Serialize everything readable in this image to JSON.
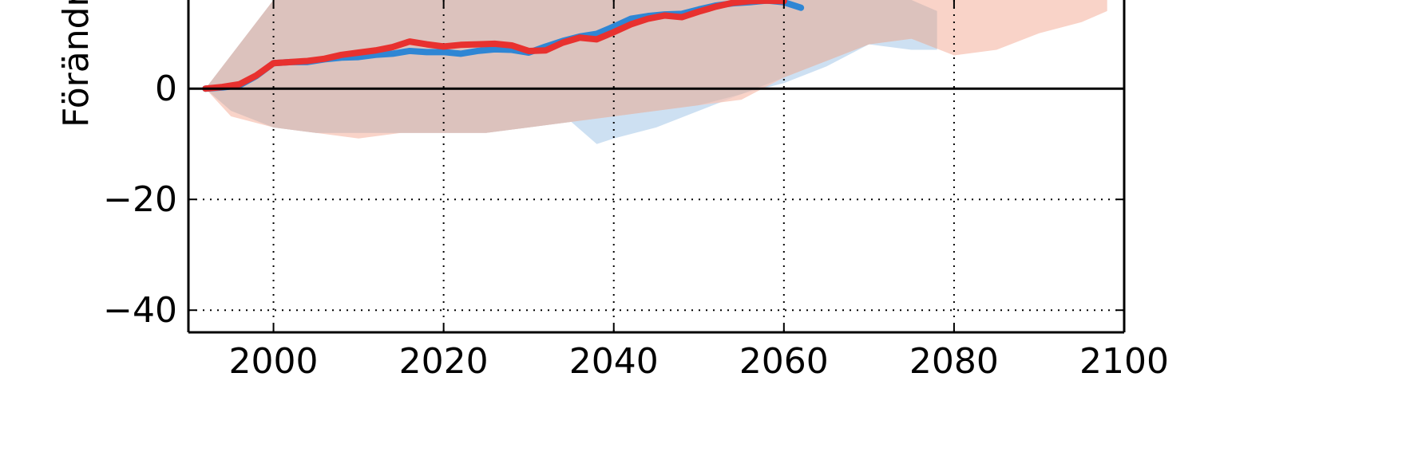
{
  "chart_data": {
    "type": "line",
    "ylabel": "Förändring",
    "xlim": [
      1990,
      2100
    ],
    "ylim": [
      -44,
      16
    ],
    "xticks": [
      2000,
      2020,
      2040,
      2060,
      2080,
      2100
    ],
    "yticks": [
      -40,
      -20,
      0
    ],
    "xtick_labels": [
      "2000",
      "2020",
      "2040",
      "2060",
      "2080",
      "2100"
    ],
    "ytick_labels": [
      "−40",
      "−20",
      "0"
    ],
    "grid": true,
    "zero_line": true,
    "colors": {
      "red": "#e8312f",
      "blue": "#2f86d4",
      "red_band": "#f7c4b5",
      "blue_band": "#bcd6ee",
      "overlap_band": "#dcc2bd"
    },
    "bands": [
      {
        "id": "blue-range",
        "color_key": "blue_band",
        "x": [
          1992,
          1995,
          2000,
          2005,
          2010,
          2015,
          2020,
          2025,
          2030,
          2035,
          2038,
          2040,
          2045,
          2050,
          2055,
          2060,
          2065,
          2070,
          2075,
          2078
        ],
        "upper": [
          0,
          6,
          16,
          16,
          16,
          16,
          16,
          16,
          16,
          16,
          16,
          16,
          16,
          16,
          16,
          16,
          16,
          16,
          16,
          14
        ],
        "lower": [
          0,
          -4,
          -7,
          -8,
          -8,
          -8,
          -8,
          -8,
          -7,
          -6,
          -10,
          -9,
          -7,
          -4,
          -1,
          1,
          4,
          8,
          7,
          7
        ]
      },
      {
        "id": "red-range",
        "color_key": "red_band",
        "x": [
          1992,
          1995,
          2000,
          2005,
          2010,
          2015,
          2020,
          2025,
          2030,
          2035,
          2040,
          2045,
          2050,
          2055,
          2060,
          2065,
          2070,
          2075,
          2080,
          2085,
          2090,
          2095,
          2098
        ],
        "upper": [
          0,
          6,
          16,
          16,
          16,
          16,
          16,
          16,
          16,
          16,
          16,
          16,
          16,
          16,
          16,
          16,
          16,
          16,
          16,
          16,
          16,
          16,
          16
        ],
        "lower": [
          0,
          -5,
          -7,
          -8,
          -9,
          -8,
          -8,
          -8,
          -7,
          -6,
          -5,
          -4,
          -3,
          -2,
          2,
          5,
          8,
          9,
          6,
          7,
          10,
          12,
          14
        ]
      }
    ],
    "series": [
      {
        "color_key": "blue",
        "x": [
          1992,
          1994,
          1996,
          1998,
          2000,
          2002,
          2004,
          2006,
          2008,
          2010,
          2012,
          2014,
          2016,
          2018,
          2020,
          2022,
          2024,
          2026,
          2028,
          2030,
          2032,
          2034,
          2036,
          2038,
          2040,
          2042,
          2044,
          2046,
          2048,
          2050,
          2052,
          2054,
          2056,
          2058,
          2060,
          2062
        ],
        "y": [
          0,
          0.2,
          0.6,
          2.3,
          4.6,
          4.8,
          4.8,
          5.3,
          5.6,
          5.7,
          6.1,
          6.3,
          6.8,
          6.6,
          6.6,
          6.3,
          6.8,
          7.1,
          7.0,
          6.5,
          7.6,
          8.6,
          9.4,
          9.9,
          11.2,
          12.6,
          13.1,
          13.4,
          13.5,
          14.3,
          15.0,
          15.4,
          15.6,
          15.9,
          15.6,
          14.6
        ]
      },
      {
        "color_key": "red",
        "x": [
          1992,
          1994,
          1996,
          1998,
          2000,
          2002,
          2004,
          2006,
          2008,
          2010,
          2012,
          2014,
          2016,
          2018,
          2020,
          2022,
          2024,
          2026,
          2028,
          2030,
          2032,
          2034,
          2036,
          2038,
          2040,
          2042,
          2044,
          2046,
          2048,
          2050,
          2052,
          2054,
          2056,
          2058,
          2060
        ],
        "y": [
          0,
          0.3,
          0.8,
          2.4,
          4.6,
          4.8,
          5.0,
          5.4,
          6.1,
          6.5,
          6.9,
          7.5,
          8.5,
          8.0,
          7.6,
          7.9,
          8.0,
          8.1,
          7.8,
          6.8,
          6.9,
          8.3,
          9.2,
          8.9,
          10.2,
          11.6,
          12.6,
          13.2,
          12.9,
          13.9,
          14.8,
          15.5,
          15.8,
          15.9,
          15.8
        ]
      }
    ]
  }
}
